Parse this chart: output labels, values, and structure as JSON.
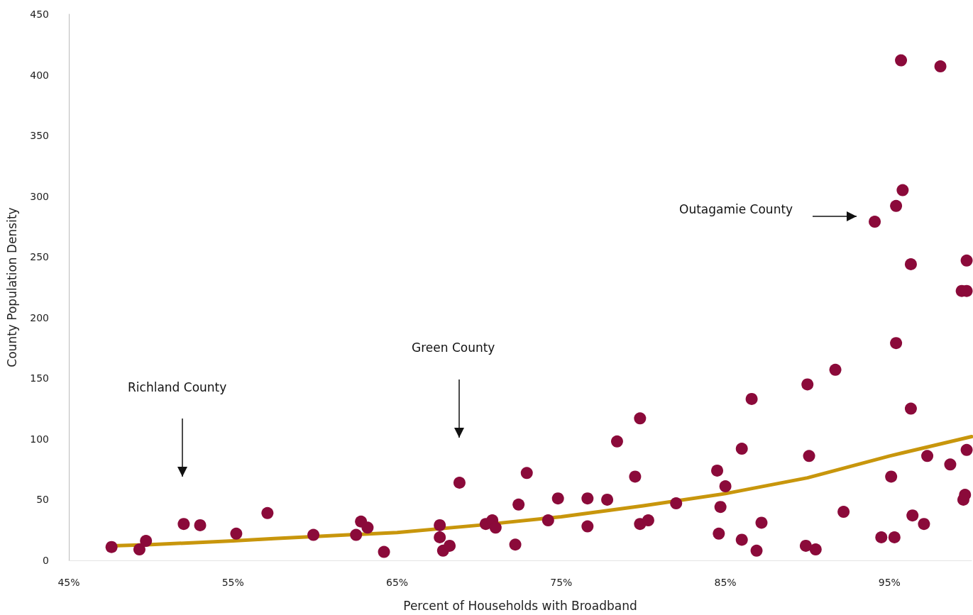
{
  "chart_data": {
    "type": "scatter",
    "xlabel": "Percent of Households with Broadband",
    "ylabel": "County Population Density",
    "xlim": [
      45,
      100
    ],
    "xticks": [
      {
        "value": 45,
        "label": "45%"
      },
      {
        "value": 55,
        "label": "55%"
      },
      {
        "value": 65,
        "label": "65%"
      },
      {
        "value": 75,
        "label": "75%"
      },
      {
        "value": 85,
        "label": "85%"
      },
      {
        "value": 95,
        "label": "95%"
      }
    ],
    "ylim": [
      0,
      450
    ],
    "yticks": [
      0,
      50,
      100,
      150,
      200,
      250,
      300,
      350,
      400,
      450
    ],
    "grid": false,
    "marker": "circle",
    "series": [
      {
        "color": "#8b0a3a",
        "x": [
          47.6,
          49.3,
          49.7,
          52.0,
          53.0,
          55.2,
          57.1,
          59.9,
          62.5,
          62.8,
          63.2,
          64.2,
          67.6,
          67.6,
          67.8,
          68.2,
          68.8,
          70.4,
          70.8,
          71.0,
          72.2,
          72.4,
          72.9,
          74.2,
          74.8,
          76.6,
          76.6,
          77.8,
          78.4,
          79.5,
          79.8,
          79.8,
          80.3,
          82.0,
          84.5,
          84.6,
          84.7,
          85.0,
          86.0,
          86.0,
          86.6,
          86.9,
          87.2,
          90.0,
          90.1,
          89.9,
          90.5,
          91.7,
          92.2,
          94.1,
          94.5,
          95.1,
          95.3,
          95.4,
          95.4,
          95.7,
          95.8,
          96.3,
          96.3,
          96.4,
          97.1,
          97.3,
          98.1,
          98.7,
          99.4,
          99.7,
          99.7,
          99.5,
          99.6,
          99.7
        ],
        "values": [
          11,
          9,
          16,
          30,
          29,
          22,
          39,
          21,
          21,
          32,
          27,
          7,
          29,
          19,
          8,
          12,
          64,
          30,
          33,
          27,
          13,
          46,
          72,
          33,
          51,
          51,
          28,
          50,
          98,
          69,
          30,
          117,
          33,
          47,
          74,
          22,
          44,
          61,
          92,
          17,
          133,
          8,
          31,
          145,
          86,
          12,
          9,
          157,
          40,
          279,
          19,
          69,
          19,
          292,
          179,
          412,
          305,
          244,
          125,
          37,
          30,
          86,
          407,
          79,
          222,
          222,
          247,
          50,
          54,
          91
        ]
      },
      {
        "type": "line",
        "color": "#c8960c",
        "marker": "none",
        "line_style": "solid",
        "x": [
          47.6,
          50,
          55,
          57.5,
          65,
          70,
          75,
          80,
          85,
          90,
          95,
          100
        ],
        "values": [
          12,
          13,
          16,
          18,
          23,
          29,
          36,
          45,
          55,
          68,
          86,
          102
        ]
      }
    ],
    "annotations": [
      "Richland County",
      "Green County",
      "Outagamie County"
    ]
  }
}
